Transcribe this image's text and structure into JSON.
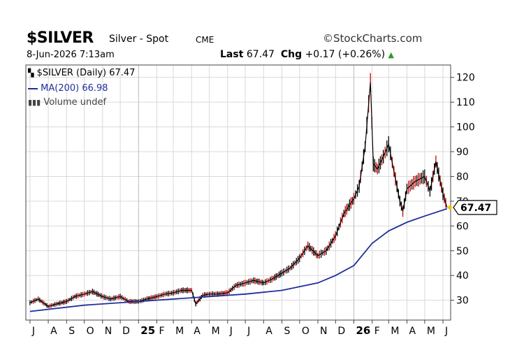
{
  "header": {
    "symbol": "$SILVER",
    "name": "Silver - Spot",
    "exchange": "CME",
    "brand": "©StockCharts.com",
    "date": "8-Jun-2026 7:13am",
    "last_label": "Last",
    "last_value": "67.47",
    "chg_label": "Chg",
    "chg_value": "+0.17 (+0.26%)",
    "chg_arrow": "▲"
  },
  "legend": {
    "price": "$SILVER (Daily) 67.47",
    "ma": "MA(200) 66.98",
    "volume": "Volume undef"
  },
  "colors": {
    "price": "#000000",
    "down_bar": "#cc0000",
    "ma": "#1f2f9a",
    "grid": "#d9d9d9",
    "last_marker": "#f2c200"
  },
  "chart_data": {
    "type": "line",
    "title": "$SILVER Silver - Spot CME",
    "ylim": [
      22,
      125
    ],
    "y_ticks": [
      30,
      40,
      50,
      60,
      70,
      80,
      90,
      100,
      110,
      120
    ],
    "x_tick_labels": [
      "J",
      "A",
      "S",
      "O",
      "N",
      "D",
      "25",
      "F",
      "M",
      "A",
      "M",
      "J",
      "J",
      "A",
      "S",
      "O",
      "N",
      "D",
      "26",
      "F",
      "M",
      "A",
      "M",
      "J"
    ],
    "bold_tick_labels": [
      "25",
      "26"
    ],
    "last_label": "67.47",
    "series": [
      {
        "name": "$SILVER (Daily)",
        "x": [
          "2024-07-01",
          "2024-07-15",
          "2024-08-01",
          "2024-08-15",
          "2024-09-01",
          "2024-09-15",
          "2024-10-01",
          "2024-10-15",
          "2024-11-01",
          "2024-11-15",
          "2024-12-01",
          "2024-12-15",
          "2025-01-01",
          "2025-01-15",
          "2025-02-01",
          "2025-02-15",
          "2025-03-01",
          "2025-03-15",
          "2025-04-01",
          "2025-04-08",
          "2025-04-20",
          "2025-05-01",
          "2025-05-15",
          "2025-06-01",
          "2025-06-15",
          "2025-07-01",
          "2025-07-15",
          "2025-08-01",
          "2025-08-15",
          "2025-09-01",
          "2025-09-15",
          "2025-10-01",
          "2025-10-15",
          "2025-11-01",
          "2025-11-15",
          "2025-12-01",
          "2025-12-15",
          "2026-01-01",
          "2026-01-10",
          "2026-01-20",
          "2026-01-29",
          "2026-02-03",
          "2026-02-10",
          "2026-02-20",
          "2026-03-01",
          "2026-03-10",
          "2026-03-20",
          "2026-03-25",
          "2026-04-01",
          "2026-04-15",
          "2026-05-01",
          "2026-05-10",
          "2026-05-20",
          "2026-06-01",
          "2026-06-08"
        ],
        "values": [
          29,
          30.5,
          27.5,
          28.5,
          29.5,
          31.5,
          32.5,
          33.5,
          31.5,
          30.5,
          31.5,
          29.5,
          29.5,
          30.5,
          31.5,
          32.5,
          33,
          34,
          34,
          28.5,
          32,
          32.5,
          32.5,
          33,
          36,
          37,
          38,
          37,
          38.5,
          41,
          43,
          47,
          52,
          48,
          50,
          56,
          65,
          71,
          76,
          92,
          118,
          85,
          83,
          88,
          93,
          82,
          70,
          66,
          75,
          78,
          80,
          74,
          86,
          73,
          67.47
        ]
      },
      {
        "name": "MA(200)",
        "x": [
          "2024-07-01",
          "2024-10-01",
          "2025-01-01",
          "2025-04-01",
          "2025-07-01",
          "2025-09-01",
          "2025-11-01",
          "2025-12-01",
          "2026-01-01",
          "2026-02-01",
          "2026-03-01",
          "2026-04-01",
          "2026-05-01",
          "2026-06-08"
        ],
        "values": [
          25.5,
          28,
          29.5,
          31,
          32.5,
          34,
          37,
          40,
          44,
          53,
          58,
          61.5,
          64,
          66.98
        ]
      }
    ]
  }
}
